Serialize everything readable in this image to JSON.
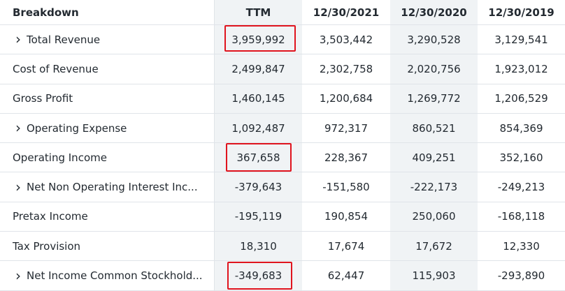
{
  "header": {
    "breakdown": "Breakdown",
    "columns": [
      "TTM",
      "12/30/2021",
      "12/30/2020",
      "12/30/2019"
    ]
  },
  "rows": [
    {
      "label": "Total Revenue",
      "expandable": true,
      "values": [
        "3,959,992",
        "3,503,442",
        "3,290,528",
        "3,129,541"
      ]
    },
    {
      "label": "Cost of Revenue",
      "expandable": false,
      "values": [
        "2,499,847",
        "2,302,758",
        "2,020,756",
        "1,923,012"
      ]
    },
    {
      "label": "Gross Profit",
      "expandable": false,
      "values": [
        "1,460,145",
        "1,200,684",
        "1,269,772",
        "1,206,529"
      ]
    },
    {
      "label": "Operating Expense",
      "expandable": true,
      "values": [
        "1,092,487",
        "972,317",
        "860,521",
        "854,369"
      ]
    },
    {
      "label": "Operating Income",
      "expandable": false,
      "values": [
        "367,658",
        "228,367",
        "409,251",
        "352,160"
      ]
    },
    {
      "label": "Net Non Operating Interest Inc...",
      "expandable": true,
      "values": [
        "-379,643",
        "-151,580",
        "-222,173",
        "-249,213"
      ]
    },
    {
      "label": "Pretax Income",
      "expandable": false,
      "values": [
        "-195,119",
        "190,854",
        "250,060",
        "-168,118"
      ]
    },
    {
      "label": "Tax Provision",
      "expandable": false,
      "values": [
        "18,310",
        "17,674",
        "17,672",
        "12,330"
      ]
    },
    {
      "label": "Net Income Common Stockhold...",
      "expandable": true,
      "values": [
        "-349,683",
        "62,447",
        "115,903",
        "-293,890"
      ]
    }
  ],
  "highlight_color": "#e0141e",
  "icons": {
    "expand": "chevron-right-icon"
  }
}
